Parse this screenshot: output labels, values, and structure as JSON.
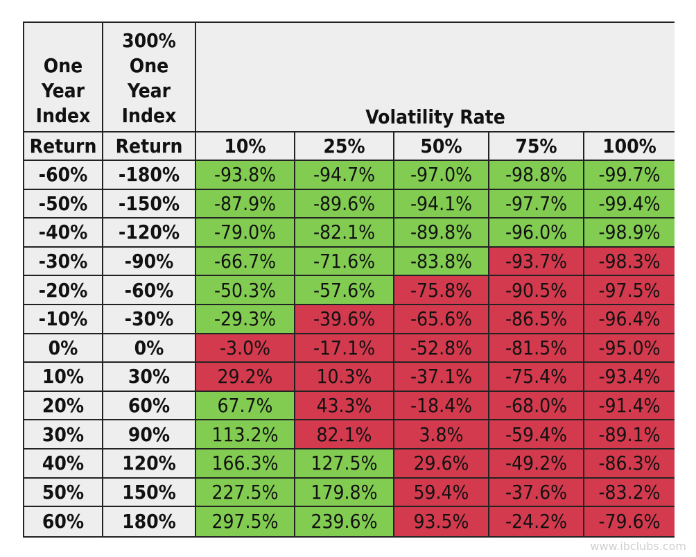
{
  "chart_data": {
    "type": "table",
    "header": {
      "col1": [
        "One",
        "Year",
        "Index"
      ],
      "col2": [
        "300%",
        "One",
        "Year",
        "Index"
      ],
      "group_title": "Volatility Rate",
      "return_label": "Return"
    },
    "volatility_rates": [
      "10%",
      "25%",
      "50%",
      "75%",
      "100%"
    ],
    "rows": [
      {
        "index_return": "-60%",
        "leveraged_return": "-180%",
        "values": [
          "-93.8%",
          "-94.7%",
          "-97.0%",
          "-98.8%",
          "-99.7%"
        ],
        "colors": [
          "green",
          "green",
          "green",
          "green",
          "green"
        ]
      },
      {
        "index_return": "-50%",
        "leveraged_return": "-150%",
        "values": [
          "-87.9%",
          "-89.6%",
          "-94.1%",
          "-97.7%",
          "-99.4%"
        ],
        "colors": [
          "green",
          "green",
          "green",
          "green",
          "green"
        ]
      },
      {
        "index_return": "-40%",
        "leveraged_return": "-120%",
        "values": [
          "-79.0%",
          "-82.1%",
          "-89.8%",
          "-96.0%",
          "-98.9%"
        ],
        "colors": [
          "green",
          "green",
          "green",
          "green",
          "green"
        ]
      },
      {
        "index_return": "-30%",
        "leveraged_return": "-90%",
        "values": [
          "-66.7%",
          "-71.6%",
          "-83.8%",
          "-93.7%",
          "-98.3%"
        ],
        "colors": [
          "green",
          "green",
          "green",
          "red",
          "red"
        ]
      },
      {
        "index_return": "-20%",
        "leveraged_return": "-60%",
        "values": [
          "-50.3%",
          "-57.6%",
          "-75.8%",
          "-90.5%",
          "-97.5%"
        ],
        "colors": [
          "green",
          "green",
          "red",
          "red",
          "red"
        ]
      },
      {
        "index_return": "-10%",
        "leveraged_return": "-30%",
        "values": [
          "-29.3%",
          "-39.6%",
          "-65.6%",
          "-86.5%",
          "-96.4%"
        ],
        "colors": [
          "green",
          "red",
          "red",
          "red",
          "red"
        ]
      },
      {
        "index_return": "0%",
        "leveraged_return": "0%",
        "values": [
          "-3.0%",
          "-17.1%",
          "-52.8%",
          "-81.5%",
          "-95.0%"
        ],
        "colors": [
          "red",
          "red",
          "red",
          "red",
          "red"
        ]
      },
      {
        "index_return": "10%",
        "leveraged_return": "30%",
        "values": [
          "29.2%",
          "10.3%",
          "-37.1%",
          "-75.4%",
          "-93.4%"
        ],
        "colors": [
          "red",
          "red",
          "red",
          "red",
          "red"
        ]
      },
      {
        "index_return": "20%",
        "leveraged_return": "60%",
        "values": [
          "67.7%",
          "43.3%",
          "-18.4%",
          "-68.0%",
          "-91.4%"
        ],
        "colors": [
          "green",
          "red",
          "red",
          "red",
          "red"
        ]
      },
      {
        "index_return": "30%",
        "leveraged_return": "90%",
        "values": [
          "113.2%",
          "82.1%",
          "3.8%",
          "-59.4%",
          "-89.1%"
        ],
        "colors": [
          "green",
          "red",
          "red",
          "red",
          "red"
        ]
      },
      {
        "index_return": "40%",
        "leveraged_return": "120%",
        "values": [
          "166.3%",
          "127.5%",
          "29.6%",
          "-49.2%",
          "-86.3%"
        ],
        "colors": [
          "green",
          "green",
          "red",
          "red",
          "red"
        ]
      },
      {
        "index_return": "50%",
        "leveraged_return": "150%",
        "values": [
          "227.5%",
          "179.8%",
          "59.4%",
          "-37.6%",
          "-83.2%"
        ],
        "colors": [
          "green",
          "green",
          "red",
          "red",
          "red"
        ]
      },
      {
        "index_return": "60%",
        "leveraged_return": "180%",
        "values": [
          "297.5%",
          "239.6%",
          "93.5%",
          "-24.2%",
          "-79.6%"
        ],
        "colors": [
          "green",
          "green",
          "red",
          "red",
          "red"
        ]
      }
    ],
    "colors": {
      "green": "#82cc52",
      "red": "#d33a4e",
      "header_bg": "#eeeeee"
    }
  },
  "watermark": "www.ibclubs.com"
}
